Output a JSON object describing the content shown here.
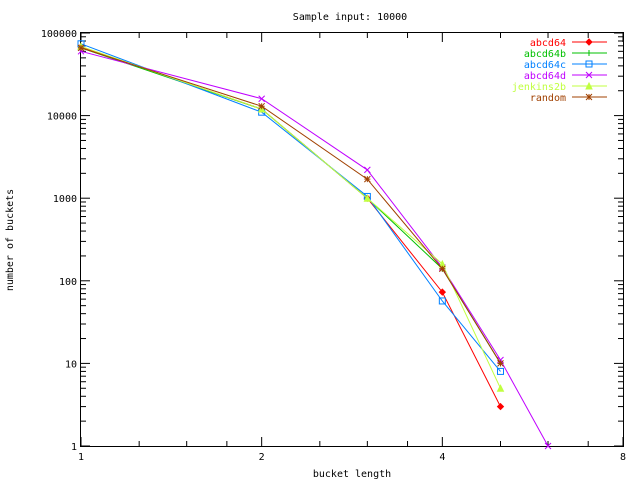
{
  "chart_data": {
    "type": "line",
    "title": "Sample input: 10000",
    "xlabel": "bucket length",
    "ylabel": "number of buckets",
    "x_scale": "log2",
    "y_scale": "log10",
    "xlim": [
      1,
      8
    ],
    "ylim": [
      1,
      100000
    ],
    "x_ticks": [
      1,
      2,
      4,
      8
    ],
    "x_tick_labels": [
      "1",
      "2",
      "4",
      "8"
    ],
    "y_ticks": [
      1,
      10,
      100,
      1000,
      10000,
      100000
    ],
    "y_tick_labels": [
      "1",
      "10",
      "100",
      "1000",
      "10000",
      "100000"
    ],
    "grid": false,
    "legend_position": "top-right",
    "series": [
      {
        "name": "abcd64",
        "color": "#ff0000",
        "marker": "diamond",
        "x": [
          1,
          2,
          3,
          4,
          5
        ],
        "y": [
          68000,
          12000,
          1000,
          73,
          3
        ]
      },
      {
        "name": "abcd64b",
        "color": "#00c000",
        "marker": "plus",
        "x": [
          1,
          2,
          3,
          4,
          5
        ],
        "y": [
          66000,
          12000,
          1000,
          140,
          10
        ]
      },
      {
        "name": "abcd64c",
        "color": "#0080ff",
        "marker": "square",
        "x": [
          1,
          2,
          3,
          4,
          5
        ],
        "y": [
          74000,
          11000,
          1050,
          57,
          8
        ]
      },
      {
        "name": "abcd64d",
        "color": "#c000ff",
        "marker": "x",
        "x": [
          1,
          2,
          3,
          4,
          5,
          6
        ],
        "y": [
          60000,
          16000,
          2200,
          145,
          11,
          1
        ]
      },
      {
        "name": "jenkins2b",
        "color": "#c0ff40",
        "marker": "triangle",
        "x": [
          1,
          2,
          3,
          4,
          5
        ],
        "y": [
          69000,
          12000,
          1000,
          160,
          5
        ]
      },
      {
        "name": "random",
        "color": "#a04000",
        "marker": "star",
        "x": [
          1,
          2,
          3,
          4,
          5
        ],
        "y": [
          66000,
          13000,
          1700,
          140,
          10
        ]
      }
    ]
  }
}
